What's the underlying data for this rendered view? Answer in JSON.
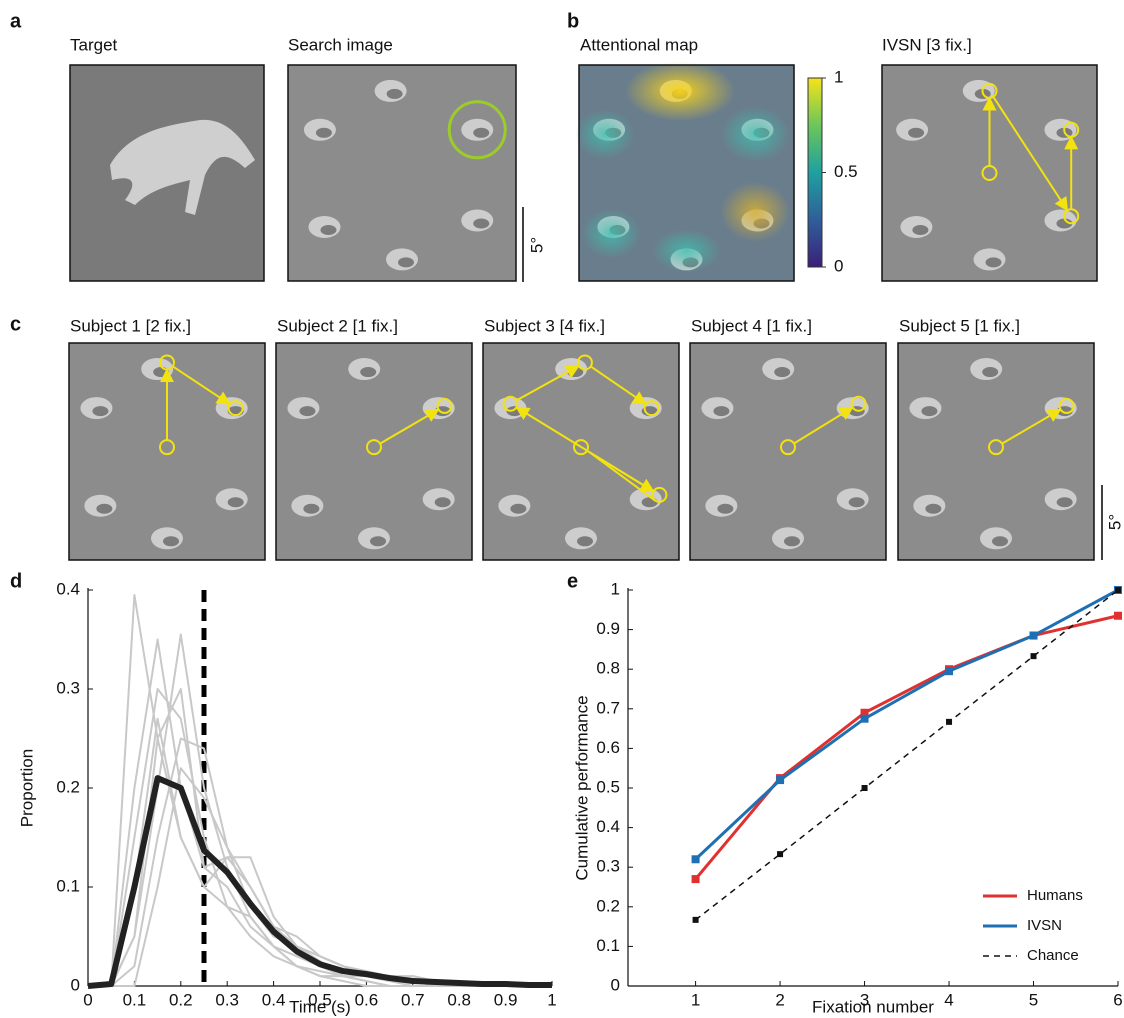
{
  "panels": {
    "a": {
      "label": "a",
      "titles": [
        "Target",
        "Search image"
      ],
      "scale": "5°"
    },
    "b": {
      "label": "b",
      "titles": [
        "Attentional map",
        "IVSN [3 fix.]"
      ],
      "colorbar_ticks": [
        0,
        0.5,
        1
      ]
    },
    "c": {
      "label": "c",
      "titles": [
        "Subject 1 [2 fix.]",
        "Subject 2 [1 fix.]",
        "Subject 3 [4 fix.]",
        "Subject 4 [1 fix.]",
        "Subject 5 [1 fix.]"
      ],
      "scale": "5°"
    },
    "d": {
      "label": "d"
    },
    "e": {
      "label": "e"
    }
  },
  "chart_data": [
    {
      "type": "line",
      "xlabel": "Time (s)",
      "ylabel": "Proportion",
      "x": [
        0,
        0.05,
        0.1,
        0.15,
        0.2,
        0.25,
        0.3,
        0.35,
        0.4,
        0.45,
        0.5,
        0.55,
        0.6,
        0.65,
        0.7,
        0.75,
        0.8,
        0.85,
        0.9,
        0.95,
        1
      ],
      "xlim": [
        0,
        1
      ],
      "xticks": [
        0,
        0.1,
        0.2,
        0.3,
        0.4,
        0.5,
        0.6,
        0.7,
        0.8,
        0.9,
        1
      ],
      "ylim": [
        0,
        0.4
      ],
      "yticks": [
        0,
        0.1,
        0.2,
        0.3,
        0.4
      ],
      "vline": 0.25,
      "series": [
        {
          "color": "#c8c8c8",
          "values": [
            0,
            0,
            0.395,
            0.25,
            0.15,
            0.1,
            0.08,
            0.05,
            0.03,
            0.02,
            0.01,
            0.01,
            0.005,
            0,
            0,
            0,
            0,
            0,
            0,
            0,
            0
          ]
        },
        {
          "color": "#c8c8c8",
          "values": [
            0,
            0,
            0.2,
            0.35,
            0.2,
            0.12,
            0.1,
            0.06,
            0.04,
            0.02,
            0.01,
            0.005,
            0,
            0,
            0,
            0,
            0,
            0,
            0,
            0,
            0
          ]
        },
        {
          "color": "#c8c8c8",
          "values": [
            0,
            0,
            0.05,
            0.2,
            0.355,
            0.2,
            0.12,
            0.07,
            0.04,
            0.03,
            0.02,
            0.01,
            0.005,
            0,
            0,
            0,
            0,
            0,
            0,
            0,
            0
          ]
        },
        {
          "color": "#c8c8c8",
          "values": [
            0,
            0,
            0.02,
            0.15,
            0.25,
            0.24,
            0.14,
            0.1,
            0.06,
            0.04,
            0.025,
            0.01,
            0.01,
            0.005,
            0,
            0,
            0,
            0,
            0,
            0,
            0
          ]
        },
        {
          "color": "#c8c8c8",
          "values": [
            0,
            0,
            0.15,
            0.3,
            0.27,
            0.15,
            0.08,
            0.07,
            0.04,
            0.02,
            0.015,
            0.01,
            0.005,
            0,
            0,
            0,
            0,
            0,
            0,
            0,
            0
          ]
        },
        {
          "color": "#c8c8c8",
          "values": [
            0,
            0,
            0.05,
            0.25,
            0.3,
            0.12,
            0.13,
            0.13,
            0.07,
            0.04,
            0.03,
            0.02,
            0.015,
            0.01,
            0.01,
            0.005,
            0.005,
            0,
            0,
            0,
            0
          ]
        },
        {
          "color": "#c8c8c8",
          "values": [
            0,
            0,
            0.1,
            0.27,
            0.15,
            0.1,
            0.13,
            0.1,
            0.06,
            0.05,
            0.03,
            0.02,
            0.01,
            0.005,
            0.01,
            0.005,
            0,
            0,
            0,
            0,
            0
          ]
        },
        {
          "color": "#c8c8c8",
          "values": [
            0,
            0,
            0,
            0.1,
            0.22,
            0.19,
            0.14,
            0.08,
            0.05,
            0.04,
            0.03,
            0.02,
            0.01,
            0.01,
            0.005,
            0,
            0,
            0,
            0,
            0,
            0
          ]
        },
        {
          "color": "#222222",
          "width": 6,
          "values": [
            0,
            0.002,
            0.1,
            0.21,
            0.2,
            0.137,
            0.115,
            0.083,
            0.055,
            0.035,
            0.022,
            0.015,
            0.012,
            0.008,
            0.005,
            0.004,
            0.003,
            0.002,
            0.002,
            0.001,
            0.001
          ]
        }
      ]
    },
    {
      "type": "line",
      "xlabel": "Fixation number",
      "ylabel": "Cumulative performance",
      "x": [
        1,
        2,
        3,
        4,
        5,
        6
      ],
      "xlim": [
        0.2,
        6
      ],
      "xticks": [
        1,
        2,
        3,
        4,
        5,
        6
      ],
      "ylim": [
        0,
        1
      ],
      "yticks": [
        0,
        0.1,
        0.2,
        0.3,
        0.4,
        0.5,
        0.6,
        0.7,
        0.8,
        0.9,
        1
      ],
      "legend": "lower right",
      "series": [
        {
          "name": "Humans",
          "color": "#e0302f",
          "width": 3,
          "values": [
            0.27,
            0.525,
            0.69,
            0.8,
            0.885,
            0.935
          ]
        },
        {
          "name": "IVSN",
          "color": "#1f6fb4",
          "width": 3,
          "values": [
            0.32,
            0.52,
            0.675,
            0.795,
            0.885,
            1.0
          ]
        },
        {
          "name": "Chance",
          "color": "#111111",
          "width": 1.5,
          "dash": true,
          "values": [
            0.167,
            0.333,
            0.5,
            0.667,
            0.833,
            1.0
          ]
        }
      ]
    }
  ]
}
